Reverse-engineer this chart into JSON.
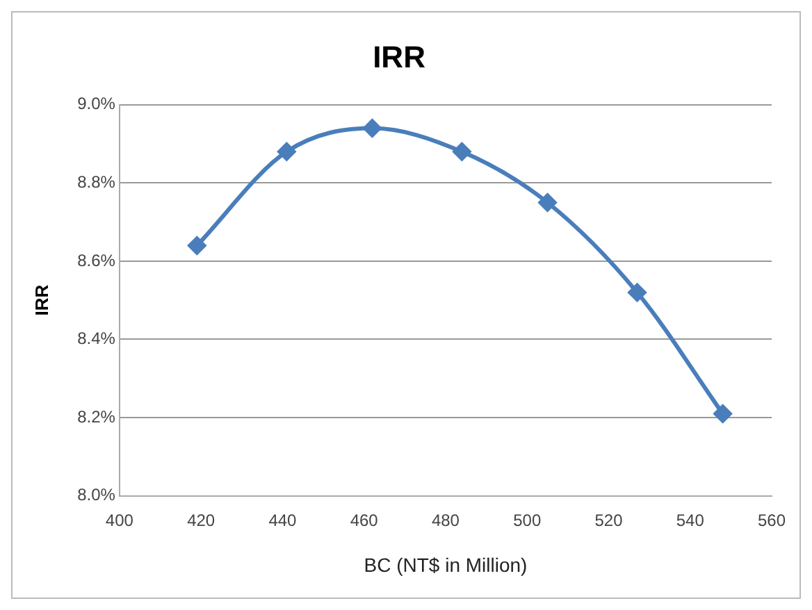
{
  "chart_data": {
    "type": "line",
    "title": "IRR",
    "xlabel": "BC (NT$ in Million)",
    "ylabel": "IRR",
    "x": [
      419,
      441,
      462,
      484,
      505,
      527,
      548
    ],
    "series": [
      {
        "color": "#4a7ebb",
        "values": [
          8.64,
          8.88,
          8.94,
          8.88,
          8.75,
          8.52,
          8.21
        ]
      }
    ],
    "xlim": [
      400,
      560
    ],
    "xticks": [
      400,
      420,
      440,
      460,
      480,
      500,
      520,
      540,
      560
    ],
    "ylim": [
      8.0,
      9.0
    ],
    "yticks": [
      {
        "value": 8.0,
        "label": "8.0%"
      },
      {
        "value": 8.2,
        "label": "8.2%"
      },
      {
        "value": 8.4,
        "label": "8.4%"
      },
      {
        "value": 8.6,
        "label": "8.6%"
      },
      {
        "value": 8.8,
        "label": "8.8%"
      },
      {
        "value": 9.0,
        "label": "9.0%"
      }
    ],
    "grid": "y",
    "legend": false,
    "marker": "diamond",
    "line_style": "solid"
  }
}
